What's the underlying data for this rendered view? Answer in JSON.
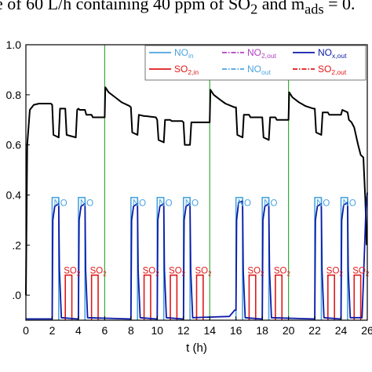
{
  "caption": {
    "pre": "e of 60 L/h containing 40 ppm of SO",
    "sub1": "2",
    "mid": " and m",
    "sub2": "ads",
    "post": " = 0."
  },
  "chart_data": {
    "type": "line",
    "xlabel": "t (h)",
    "ylabel": "",
    "xlim": [
      0,
      26
    ],
    "ylim": [
      -0.1,
      1.0
    ],
    "x_ticks": [
      0,
      2,
      4,
      6,
      8,
      10,
      12,
      14,
      16,
      18,
      20,
      22,
      24,
      26
    ],
    "y_ticks": [
      0.0,
      0.2,
      0.4,
      0.6,
      0.8,
      1.0
    ],
    "y_tick_labels": [
      ".0",
      ".2",
      "0.4",
      "0.6",
      "0.8",
      "1.0"
    ],
    "x_tick_labels": [
      "0",
      "2",
      "4",
      "6",
      "8",
      "10",
      "12",
      "14",
      "16",
      "18",
      "20",
      "22",
      "24",
      "26"
    ],
    "cycle_separators_x": [
      6,
      14,
      20
    ],
    "pulse_labels": {
      "no": "NO",
      "so2_pre": "SO",
      "so2_sub": "2"
    },
    "legend": [
      {
        "main": "NO",
        "sub": "in",
        "color": "#4aa3df",
        "dash": "solid"
      },
      {
        "main": "NO",
        "sub": "2,out",
        "color": "#b040c0",
        "dash": "dashdot"
      },
      {
        "main": "NO",
        "sub": "x,out",
        "color": "#0a1aa8",
        "dash": "solid"
      },
      {
        "main": "SO",
        "sub": "2,in",
        "color": "#e01818",
        "dash": "solid"
      },
      {
        "main": "NO",
        "sub": "out",
        "color": "#4aa3df",
        "dash": "dashdot"
      },
      {
        "main": "SO",
        "sub": "2,out",
        "color": "#e01818",
        "dash": "dashdot"
      }
    ],
    "series": [
      {
        "color": "#000000",
        "x": [
          0,
          0.1,
          0.3,
          0.6,
          1.0,
          1.5,
          1.9,
          2.0,
          2.1,
          2.5,
          2.6,
          3.0,
          3.1,
          3.8,
          3.9,
          4.0,
          4.1,
          4.5,
          4.6,
          5.0,
          5.1,
          5.9,
          6.0,
          6.05,
          6.3,
          6.8,
          7.3,
          7.9,
          8.0,
          8.1,
          8.5,
          8.6,
          9.0,
          9.1,
          9.9,
          10.0,
          10.1,
          10.5,
          10.6,
          11.0,
          11.1,
          11.9,
          12.0,
          12.1,
          12.5,
          12.6,
          13.0,
          13.1,
          14.0,
          14.05,
          14.3,
          14.8,
          15.2,
          15.9,
          16.0,
          16.1,
          16.5,
          16.6,
          17.0,
          17.1,
          17.9,
          18.0,
          18.1,
          18.5,
          18.6,
          19.0,
          19.1,
          20.0,
          20.05,
          20.3,
          20.8,
          21.3,
          21.9,
          22.0,
          22.1,
          22.5,
          22.6,
          23.0,
          23.1,
          23.9,
          24.0,
          24.1,
          24.5,
          24.6,
          24.8,
          24.9,
          25.0,
          25.3,
          25.5,
          25.7,
          25.85,
          25.95
        ],
        "y": [
          0.0,
          0.6,
          0.74,
          0.76,
          0.765,
          0.765,
          0.765,
          0.76,
          0.64,
          0.63,
          0.745,
          0.745,
          0.64,
          0.63,
          0.74,
          0.745,
          0.74,
          0.74,
          0.72,
          0.72,
          0.71,
          0.71,
          0.71,
          0.83,
          0.81,
          0.79,
          0.77,
          0.755,
          0.75,
          0.65,
          0.64,
          0.72,
          0.715,
          0.715,
          0.71,
          0.7,
          0.62,
          0.61,
          0.7,
          0.7,
          0.695,
          0.695,
          0.69,
          0.6,
          0.6,
          0.69,
          0.69,
          0.69,
          0.69,
          0.82,
          0.8,
          0.78,
          0.765,
          0.75,
          0.75,
          0.64,
          0.63,
          0.72,
          0.72,
          0.71,
          0.71,
          0.71,
          0.63,
          0.62,
          0.71,
          0.71,
          0.7,
          0.7,
          0.81,
          0.79,
          0.77,
          0.755,
          0.745,
          0.745,
          0.65,
          0.64,
          0.73,
          0.73,
          0.72,
          0.72,
          0.72,
          0.74,
          0.73,
          0.7,
          0.69,
          0.68,
          0.67,
          0.6,
          0.56,
          0.55,
          0.38,
          0.2
        ]
      },
      {
        "color": "#0a1aa8",
        "x": [
          0,
          1.9,
          2.0,
          2.05,
          2.2,
          2.5,
          2.5,
          2.55,
          2.7,
          3.9,
          4.0,
          4.05,
          4.2,
          4.5,
          4.5,
          4.55,
          4.7,
          7.9,
          8.0,
          8.05,
          8.2,
          8.5,
          8.5,
          8.55,
          8.7,
          9.9,
          10.0,
          10.05,
          10.2,
          10.5,
          10.5,
          10.55,
          10.7,
          11.9,
          12.0,
          12.05,
          12.2,
          12.5,
          12.5,
          12.55,
          12.7,
          15.5,
          15.9,
          16.0,
          16.05,
          16.2,
          16.5,
          16.5,
          16.55,
          16.7,
          17.9,
          18.0,
          18.05,
          18.2,
          18.5,
          18.5,
          18.55,
          18.7,
          21.9,
          22.0,
          22.05,
          22.2,
          22.5,
          22.5,
          22.55,
          22.7,
          23.9,
          24.0,
          24.05,
          24.2,
          24.5,
          24.5,
          24.55,
          24.7,
          25.6,
          25.7,
          25.9,
          26.0
        ],
        "y": [
          -0.095,
          -0.095,
          -0.095,
          0.3,
          0.355,
          0.365,
          0.365,
          0.1,
          -0.09,
          -0.095,
          -0.095,
          0.3,
          0.355,
          0.365,
          0.365,
          0.1,
          -0.09,
          -0.095,
          -0.095,
          0.3,
          0.355,
          0.365,
          0.365,
          0.1,
          -0.09,
          -0.095,
          -0.095,
          0.3,
          0.355,
          0.365,
          0.365,
          0.1,
          -0.09,
          -0.095,
          -0.095,
          0.3,
          0.355,
          0.365,
          0.365,
          0.1,
          -0.09,
          -0.085,
          -0.06,
          -0.06,
          0.3,
          0.37,
          0.375,
          0.375,
          0.1,
          -0.09,
          -0.095,
          -0.095,
          0.3,
          0.355,
          0.365,
          0.365,
          0.1,
          -0.09,
          -0.095,
          -0.095,
          0.3,
          0.355,
          0.365,
          0.365,
          0.1,
          -0.09,
          -0.095,
          -0.095,
          0.3,
          0.36,
          0.37,
          0.37,
          0.1,
          -0.09,
          -0.09,
          0.05,
          0.35,
          0.41
        ]
      }
    ]
  }
}
